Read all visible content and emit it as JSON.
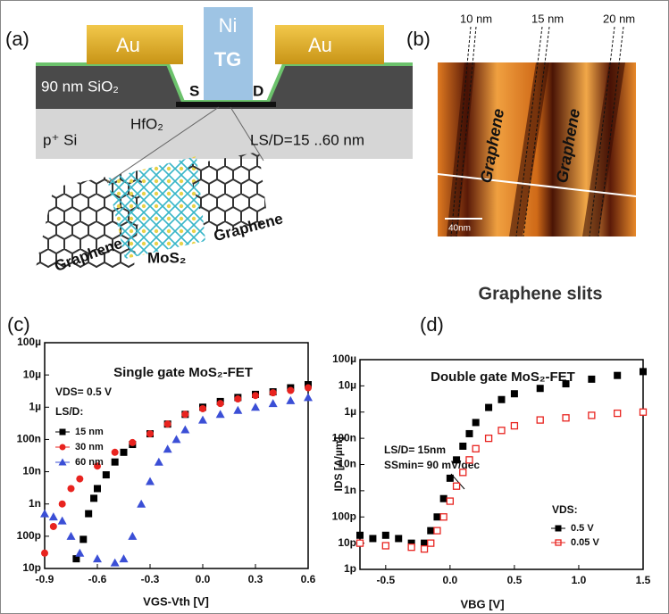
{
  "panel_a": {
    "label": "(a)",
    "au_left": "Au",
    "au_right": "Au",
    "ni": "Ni",
    "tg": "TG",
    "oxide": "90 nm SiO₂",
    "source": "S",
    "drain": "D",
    "hfo2": "HfO₂",
    "substrate": "p⁺ Si",
    "length": "LS/D=15 ..60 nm",
    "graphene_left": "Graphene",
    "mos2": "MoS₂",
    "graphene_right": "Graphene"
  },
  "panel_b": {
    "label": "(b)",
    "slit_1": "10 nm",
    "slit_2": "15 nm",
    "slit_3": "20 nm",
    "graphene_1": "Graphene",
    "graphene_2": "Graphene",
    "scale": "40nm",
    "caption": "Graphene slits"
  },
  "chart_data": [
    {
      "type": "scatter",
      "label": "(c)",
      "title": "Single gate MoS₂-FET",
      "xlabel": "VGS-Vth [V]",
      "log_y": true,
      "annotations": [
        "VDS= 0.5 V",
        "LS/D:"
      ],
      "xlim": [
        -0.9,
        0.6
      ],
      "xticks": [
        -0.9,
        -0.6,
        -0.3,
        {
          "value": 0,
          "label": "0.0"
        },
        0.3,
        0.6
      ],
      "ylim": [
        1e-11,
        0.0001
      ],
      "yticks": [
        {
          "value": 0.0001,
          "label": "100µ"
        },
        {
          "value": 1e-05,
          "label": "10µ"
        },
        {
          "value": 1e-06,
          "label": "1µ"
        },
        {
          "value": 1e-07,
          "label": "100n"
        },
        {
          "value": 1e-08,
          "label": "10n"
        },
        {
          "value": 1e-09,
          "label": "1n"
        },
        {
          "value": 1e-10,
          "label": "100p"
        },
        {
          "value": 1e-11,
          "label": "10p"
        }
      ],
      "series": [
        {
          "name": "15 nm",
          "color": "#000000",
          "marker": "square",
          "x": [
            -0.72,
            -0.68,
            -0.65,
            -0.62,
            -0.6,
            -0.55,
            -0.5,
            -0.45,
            -0.4,
            -0.3,
            -0.2,
            -0.1,
            0,
            0.1,
            0.2,
            0.3,
            0.4,
            0.5,
            0.6
          ],
          "values": [
            2e-11,
            8e-11,
            5e-10,
            1.5e-09,
            3e-09,
            8e-09,
            2e-08,
            4e-08,
            7e-08,
            1.5e-07,
            3e-07,
            6e-07,
            1e-06,
            1.5e-06,
            2e-06,
            2.5e-06,
            3e-06,
            4e-06,
            5e-06
          ]
        },
        {
          "name": "30 nm",
          "color": "#e8231f",
          "marker": "circle",
          "x": [
            -0.9,
            -0.85,
            -0.8,
            -0.75,
            -0.7,
            -0.6,
            -0.5,
            -0.4,
            -0.3,
            -0.2,
            -0.1,
            0,
            0.1,
            0.2,
            0.3,
            0.4,
            0.5,
            0.6
          ],
          "values": [
            3e-11,
            2e-10,
            1e-09,
            3e-09,
            6e-09,
            1.5e-08,
            4e-08,
            8e-08,
            1.5e-07,
            3e-07,
            6e-07,
            9e-07,
            1.3e-06,
            1.8e-06,
            2.3e-06,
            2.8e-06,
            3.3e-06,
            4e-06
          ]
        },
        {
          "name": "60 nm",
          "color": "#3b4fd6",
          "marker": "triangle",
          "x": [
            -0.9,
            -0.85,
            -0.8,
            -0.75,
            -0.7,
            -0.6,
            -0.5,
            -0.45,
            -0.4,
            -0.35,
            -0.3,
            -0.25,
            -0.2,
            -0.15,
            -0.1,
            0,
            0.1,
            0.2,
            0.3,
            0.4,
            0.5,
            0.6
          ],
          "values": [
            5e-10,
            4e-10,
            3e-10,
            1e-10,
            3e-11,
            2e-11,
            1.5e-11,
            2e-11,
            1e-10,
            1e-09,
            5e-09,
            2e-08,
            5e-08,
            1e-07,
            2e-07,
            4e-07,
            6e-07,
            8e-07,
            1e-06,
            1.3e-06,
            1.6e-06,
            2e-06
          ]
        }
      ]
    },
    {
      "type": "scatter",
      "label": "(d)",
      "title": "Double gate MoS₂-FET",
      "xlabel": "VBG [V]",
      "ylabel": "IDS [A/µm]",
      "log_y": true,
      "annotations": [
        "LS/D= 15nm",
        "SSmin= 90 mV/dec",
        "VDS:"
      ],
      "xlim": [
        -0.7,
        1.5
      ],
      "xticks": [
        -0.5,
        {
          "value": 0,
          "label": "0.0"
        },
        0.5,
        {
          "value": 1,
          "label": "1.0"
        },
        1.5
      ],
      "ylim": [
        1e-12,
        0.0001
      ],
      "yticks": [
        {
          "value": 0.0001,
          "label": "100µ"
        },
        {
          "value": 1e-05,
          "label": "10µ"
        },
        {
          "value": 1e-06,
          "label": "1µ"
        },
        {
          "value": 1e-07,
          "label": "100n"
        },
        {
          "value": 1e-08,
          "label": "10n"
        },
        {
          "value": 1e-09,
          "label": "1n"
        },
        {
          "value": 1e-10,
          "label": "100p"
        },
        {
          "value": 1e-11,
          "label": "10p"
        },
        {
          "value": 1e-12,
          "label": "1p"
        }
      ],
      "series": [
        {
          "name": "0.5 V",
          "color": "#000000",
          "marker": "square",
          "x": [
            -0.7,
            -0.6,
            -0.5,
            -0.4,
            -0.3,
            -0.2,
            -0.15,
            -0.1,
            -0.05,
            0,
            0.05,
            0.1,
            0.15,
            0.2,
            0.3,
            0.4,
            0.5,
            0.7,
            0.9,
            1.1,
            1.3,
            1.5
          ],
          "values": [
            2e-11,
            1.5e-11,
            2e-11,
            1.5e-11,
            1e-11,
            1e-11,
            3e-11,
            1e-10,
            5e-10,
            3e-09,
            1.5e-08,
            5e-08,
            1.5e-07,
            4e-07,
            1.5e-06,
            3e-06,
            5e-06,
            8e-06,
            1.2e-05,
            1.8e-05,
            2.5e-05,
            3.5e-05
          ]
        },
        {
          "name": "0.05 V",
          "color": "#e8231f",
          "marker": "open-square",
          "x": [
            -0.7,
            -0.5,
            -0.3,
            -0.2,
            -0.15,
            -0.1,
            -0.05,
            0,
            0.05,
            0.1,
            0.15,
            0.2,
            0.3,
            0.4,
            0.5,
            0.7,
            0.9,
            1.1,
            1.3,
            1.5
          ],
          "values": [
            1e-11,
            8e-12,
            7e-12,
            6e-12,
            1e-11,
            3e-11,
            1e-10,
            4e-10,
            1.5e-09,
            5e-09,
            1.5e-08,
            4e-08,
            1e-07,
            2e-07,
            3e-07,
            5e-07,
            6e-07,
            7.5e-07,
            9e-07,
            1e-06
          ]
        }
      ]
    }
  ]
}
